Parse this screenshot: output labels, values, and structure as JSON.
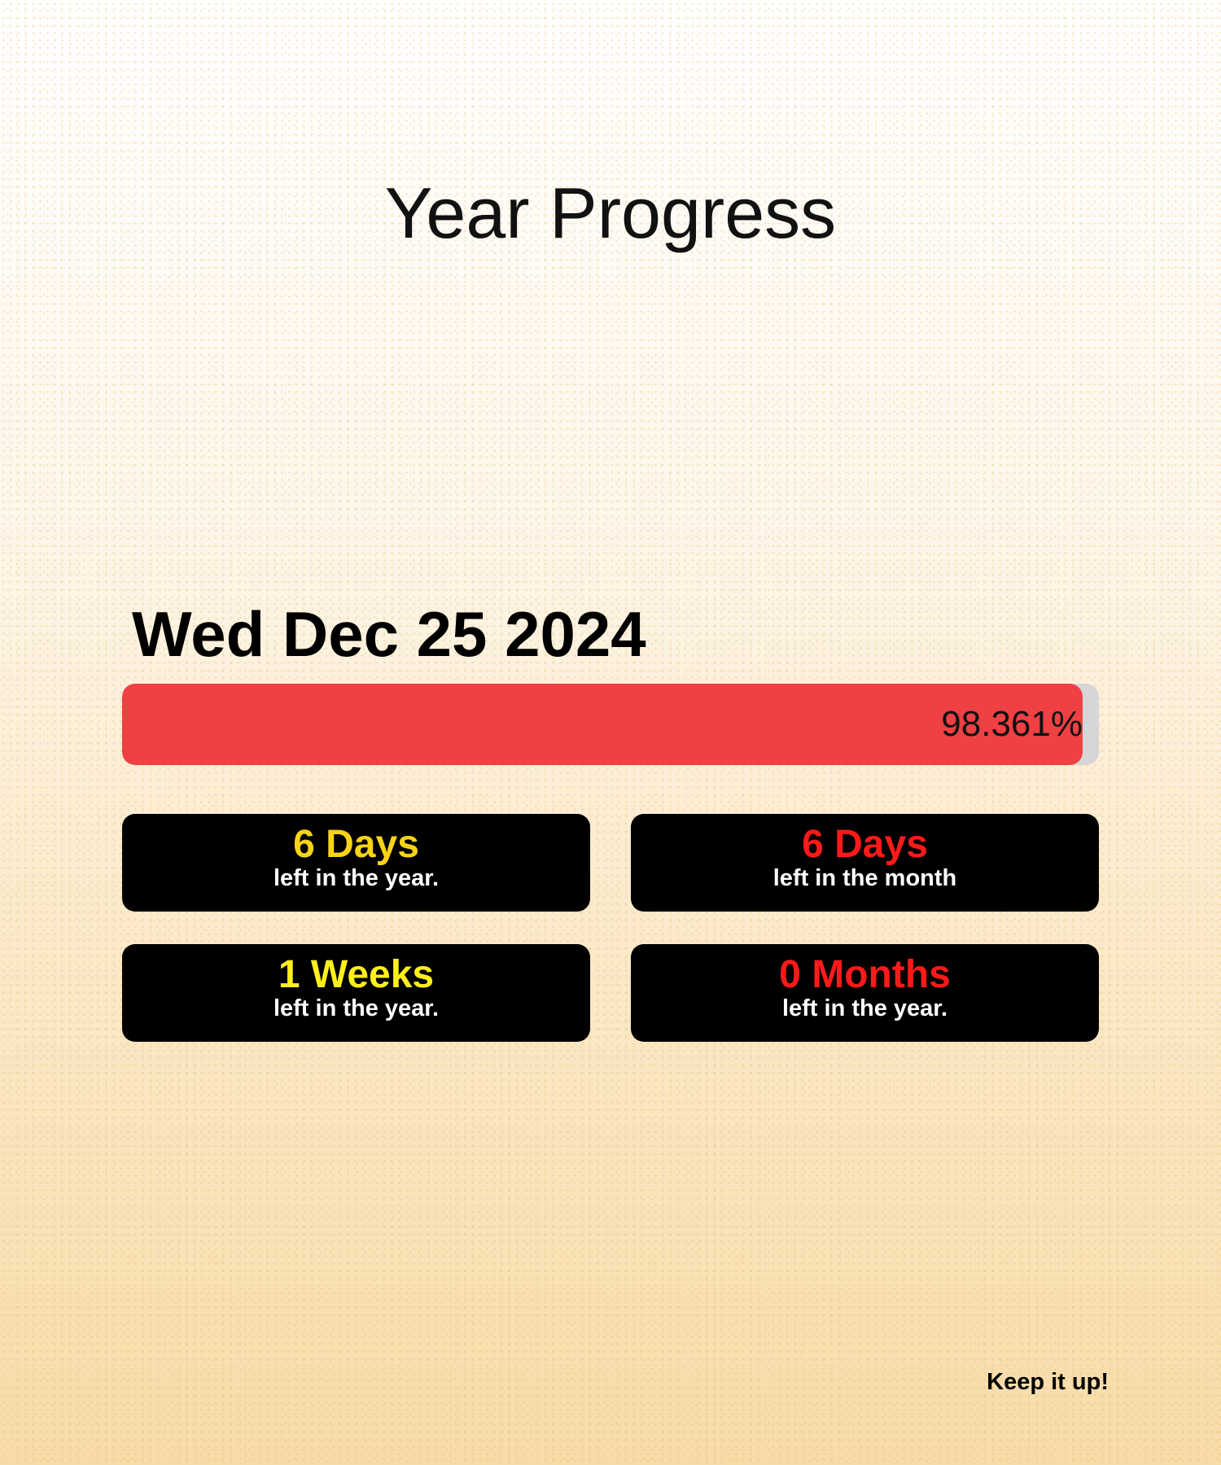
{
  "title": "Year Progress",
  "date": "Wed Dec 25 2024",
  "progress": {
    "percent": 98.361,
    "label": "98.361%",
    "fill_color": "#ef4044",
    "track_color": "#d6d6d6"
  },
  "cards": [
    {
      "value": "6 Days",
      "caption": "left in the year.",
      "color": "#f7d417"
    },
    {
      "value": "6 Days",
      "caption": "left in the month",
      "color": "#ff1a1a"
    },
    {
      "value": "1 Weeks",
      "caption": "left in the year.",
      "color": "#ffef1a"
    },
    {
      "value": "0 Months",
      "caption": "left in the year.",
      "color": "#ff1a1a"
    }
  ],
  "footer": "Keep it up!"
}
